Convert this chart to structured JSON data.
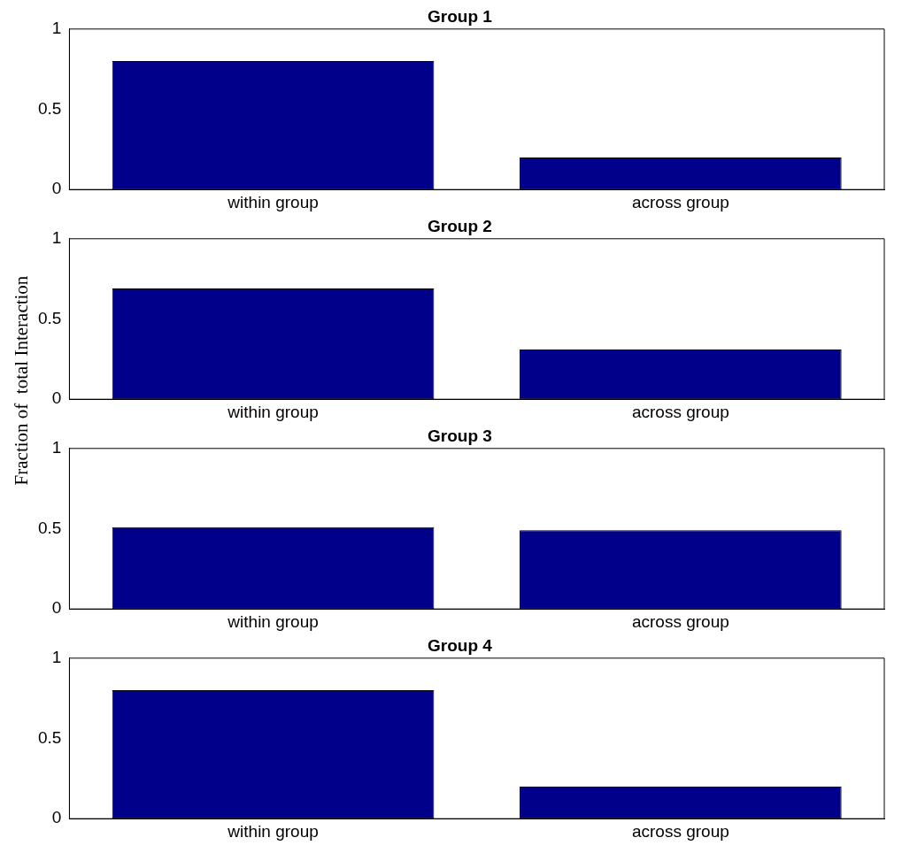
{
  "chart_data": [
    {
      "type": "bar",
      "title": "Group 1",
      "categories": [
        "within group",
        "across group"
      ],
      "values": [
        0.8,
        0.2
      ],
      "color": "#00008b",
      "ylim": [
        0,
        1
      ],
      "yticks": [
        0,
        0.5,
        1
      ],
      "grid": false
    },
    {
      "type": "bar",
      "title": "Group 2",
      "ylabel": "Fraction of  total Interaction",
      "categories": [
        "within group",
        "across group"
      ],
      "values": [
        0.69,
        0.31
      ],
      "color": "#00008b",
      "ylim": [
        0,
        1
      ],
      "yticks": [
        0,
        0.5,
        1
      ],
      "grid": false
    },
    {
      "type": "bar",
      "title": "Group 3",
      "categories": [
        "within group",
        "across group"
      ],
      "values": [
        0.51,
        0.49
      ],
      "color": "#00008b",
      "ylim": [
        0,
        1
      ],
      "yticks": [
        0,
        0.5,
        1
      ],
      "grid": false
    },
    {
      "type": "bar",
      "title": "Group 4",
      "categories": [
        "within group",
        "across group"
      ],
      "values": [
        0.8,
        0.2
      ],
      "color": "#00008b",
      "ylim": [
        0,
        1
      ],
      "yticks": [
        0,
        0.5,
        1
      ],
      "grid": false
    }
  ]
}
